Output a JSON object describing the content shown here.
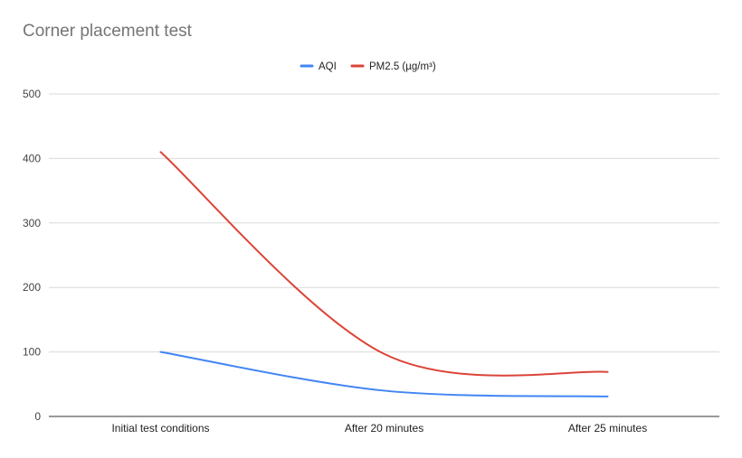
{
  "chart_data": {
    "type": "line",
    "title": "Corner placement test",
    "categories": [
      "Initial test conditions",
      "After 20 minutes",
      "After 25 minutes"
    ],
    "series": [
      {
        "name": "AQI",
        "values": [
          100,
          40,
          31
        ],
        "color": "#4285f4"
      },
      {
        "name": "PM2.5 (µg/m³)",
        "values": [
          410,
          97,
          69
        ],
        "color": "#db4437"
      }
    ],
    "ylim": [
      0,
      500
    ],
    "yticks": [
      0,
      100,
      200,
      300,
      400,
      500
    ],
    "xlabel": "",
    "ylabel": "",
    "grid": true,
    "legend_position": "top-center",
    "smooth": true
  }
}
